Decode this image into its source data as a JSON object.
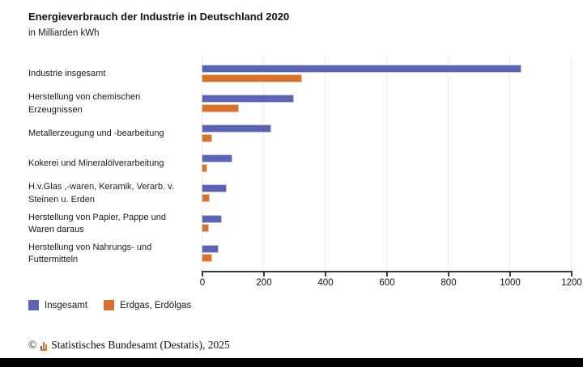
{
  "chart_data": {
    "type": "bar",
    "orientation": "horizontal",
    "title": "Energieverbrauch der Industrie in Deutschland 2020",
    "subtitle": "in Milliarden kWh",
    "categories": [
      "Industrie insgesamt",
      "Herstellung von chemischen Erzeugnissen",
      "Metallerzeugung und -bearbeitung",
      "Kokerei und Mineralölverarbeitung",
      "H.v.Glas ,-waren, Keramik, Verarb. v. Steinen u. Erden",
      "Herstellung von Papier, Pappe und Waren daraus",
      "Herstellung von Nahrungs- und Futtermitteln"
    ],
    "category_lines": [
      [
        "Industrie insgesamt"
      ],
      [
        "Herstellung von chemischen",
        "Erzeugnissen"
      ],
      [
        "Metallerzeugung und -bearbeitung"
      ],
      [
        "Kokerei und Mineralölverarbeitung"
      ],
      [
        "H.v.Glas ,-waren, Keramik, Verarb. v.",
        "Steinen u. Erden"
      ],
      [
        "Herstellung von Papier, Pappe und",
        "Waren daraus"
      ],
      [
        "Herstellung von Nahrungs- und",
        "Futtermitteln"
      ]
    ],
    "series": [
      {
        "name": "Insgesamt",
        "color": "#5b63b4",
        "values": [
          1040,
          300,
          225,
          100,
          82,
          65,
          56
        ]
      },
      {
        "name": "Erdgas, Erdölgas",
        "color": "#d9712e",
        "values": [
          325,
          120,
          33,
          18,
          27,
          24,
          33
        ]
      }
    ],
    "xlim": [
      0,
      1200
    ],
    "xticks": [
      "0",
      "200",
      "400",
      "600",
      "800",
      "1000",
      "1200"
    ],
    "grid": true,
    "legend_position": "bottom-left"
  },
  "footer": {
    "copyright": "©",
    "logo_icon": "destatis-mini-bar-chart-icon",
    "source": "Statistisches Bundesamt (Destatis), 2025"
  },
  "colors": {
    "insgesamt": "#5b63b4",
    "erdgas": "#d9712e",
    "gridline": "#ececec",
    "axis": "#3a3a3a",
    "bottom_bar": "#000000"
  }
}
